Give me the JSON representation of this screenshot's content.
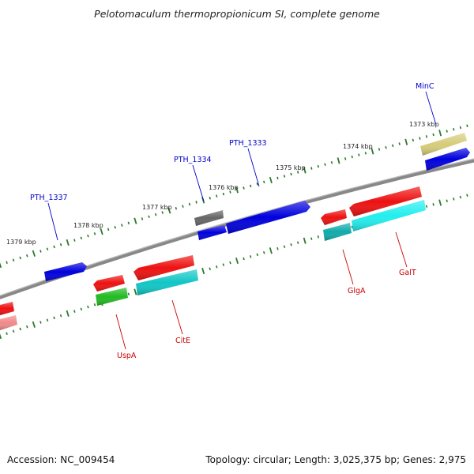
{
  "title": "Pelotomaculum thermopropionicum SI, complete genome",
  "footer": {
    "accession": "Accession: NC_009454",
    "topology": "Topology: circular; Length: 3,025,375 bp; Genes: 2,975"
  },
  "scale_labels": [
    "1379 kbp",
    "1378 kbp",
    "1377 kbp",
    "1376 kbp",
    "1375 kbp",
    "1374 kbp",
    "1373 kbp"
  ],
  "genes_forward": [
    {
      "name": "PTH_1337",
      "color": "#0000dd"
    },
    {
      "name": "",
      "color": "#666666"
    },
    {
      "name": "",
      "color": "#0000dd"
    },
    {
      "name": "PTH_1334",
      "color": "#0000dd"
    },
    {
      "name": "PTH_1333",
      "color": "#0000dd"
    },
    {
      "name": "",
      "color": "#0000dd"
    },
    {
      "name": "MinC",
      "color": "#d6cc7a"
    }
  ],
  "genes_reverse": [
    {
      "name": "",
      "color": "#ee1111"
    },
    {
      "name": "",
      "color": "#f08a8a"
    },
    {
      "name": "",
      "color": "#ee1111"
    },
    {
      "name": "UspA",
      "color": "#22bb22"
    },
    {
      "name": "CitE",
      "color": "#ee1111"
    },
    {
      "name": "",
      "color": "#11c6c6"
    },
    {
      "name": "",
      "color": "#ee1111"
    },
    {
      "name": "GlgA",
      "color": "#11aaaa"
    },
    {
      "name": "GalT",
      "color": "#ee1111"
    },
    {
      "name": "",
      "color": "#22eeee"
    }
  ],
  "label_colors": {
    "forward": "#0000cc",
    "reverse": "#cc0000"
  }
}
